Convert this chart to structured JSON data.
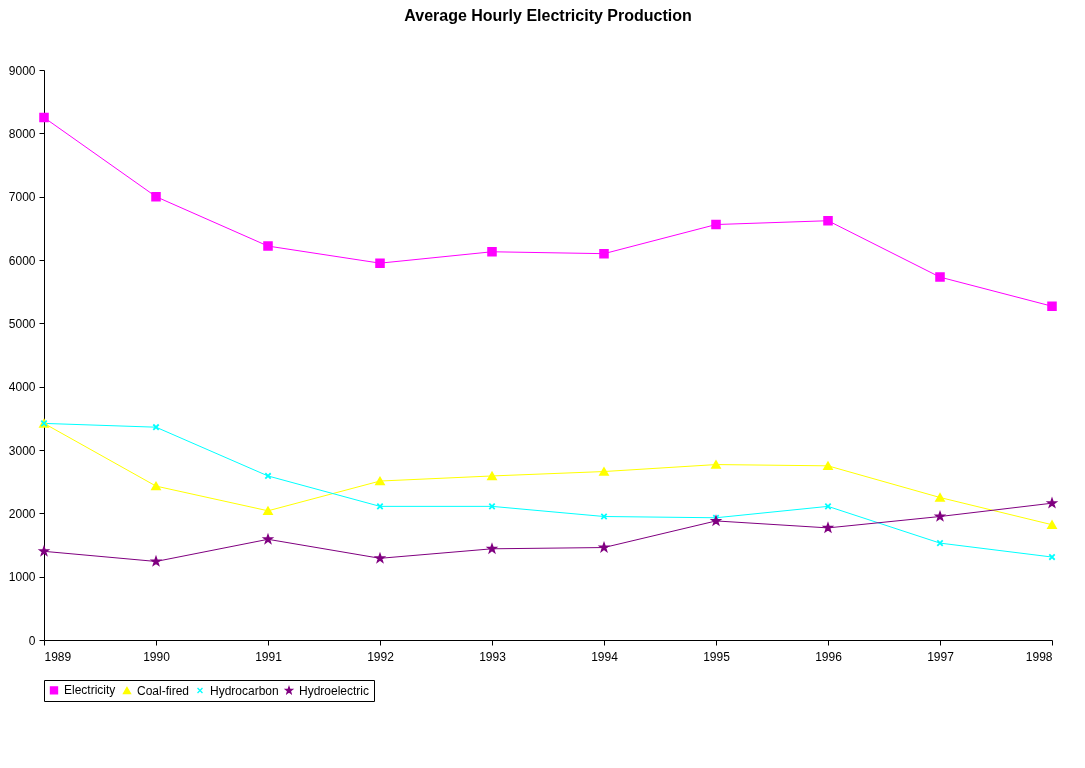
{
  "chart_data": {
    "type": "line",
    "title": "Average Hourly Electricity Production",
    "x": [
      1989,
      1990,
      1991,
      1992,
      1993,
      1994,
      1995,
      1996,
      1997,
      1998
    ],
    "xlim": [
      1989,
      1998
    ],
    "xticks": [
      1989,
      1990,
      1991,
      1992,
      1993,
      1994,
      1995,
      1996,
      1997,
      1998
    ],
    "ylim": [
      0,
      9000
    ],
    "yticks": [
      0,
      1000,
      2000,
      3000,
      4000,
      5000,
      6000,
      7000,
      8000,
      9000
    ],
    "grid": false,
    "legend": "bottom",
    "line_style": "solid",
    "series": [
      {
        "name": "Electricity",
        "color": "#ff00ff",
        "marker": "square",
        "values": [
          8250,
          7000,
          6220,
          5950,
          6130,
          6100,
          6560,
          6620,
          5730,
          5270
        ]
      },
      {
        "name": "Coal-fired",
        "color": "#ffff00",
        "marker": "triangle",
        "values": [
          3420,
          2430,
          2040,
          2510,
          2590,
          2660,
          2770,
          2750,
          2250,
          1820
        ]
      },
      {
        "name": "Hydrocarbon",
        "color": "#00ffff",
        "marker": "cross",
        "values": [
          3420,
          3360,
          2590,
          2110,
          2110,
          1950,
          1930,
          2110,
          1530,
          1310
        ]
      },
      {
        "name": "Hydroelectric",
        "color": "#800080",
        "marker": "star",
        "values": [
          1400,
          1240,
          1590,
          1290,
          1440,
          1460,
          1880,
          1770,
          1950,
          2160
        ]
      }
    ]
  }
}
